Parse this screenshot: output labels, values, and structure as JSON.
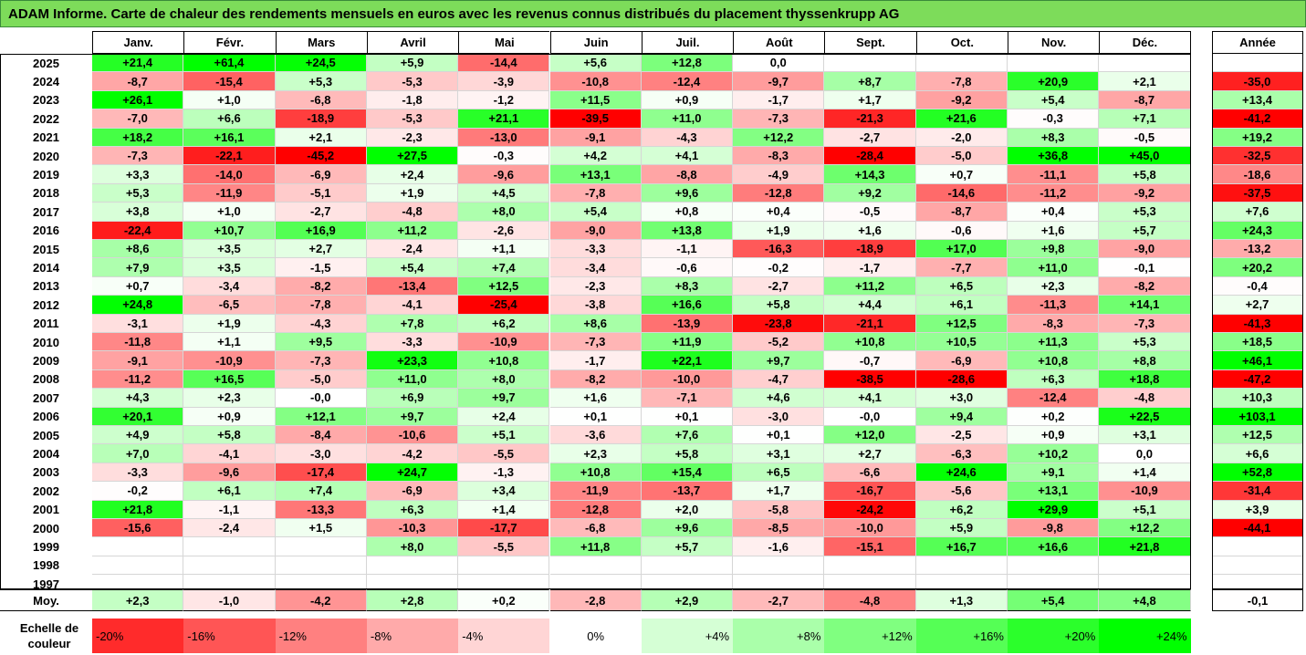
{
  "title": "ADAM Informe. Carte de chaleur des rendements mensuels en euros avec les revenus connus distribués du placement thyssenkrupp AG",
  "colors": {
    "title_bg": "#7ddc5a",
    "neg_max": "#ff0000",
    "pos_max": "#00ff00",
    "neutral": "#ffffff"
  },
  "chart_data": {
    "type": "heatmap",
    "title": "ADAM Informe. Carte de chaleur des rendements mensuels en euros avec les revenus connus distribués du placement thyssenkrupp AG",
    "months": [
      "Janv.",
      "Févr.",
      "Mars",
      "Avril",
      "Mai",
      "Juin",
      "Juil.",
      "Août",
      "Sept.",
      "Oct.",
      "Nov.",
      "Déc."
    ],
    "year_header": "Année",
    "rows": [
      {
        "year": "2025",
        "values": [
          "+21,4",
          "+61,4",
          "+24,5",
          "+5,9",
          "-14,4",
          "+5,6",
          "+12,8",
          "0,0",
          "",
          "",
          "",
          ""
        ],
        "annual": ""
      },
      {
        "year": "2024",
        "values": [
          "-8,7",
          "-15,4",
          "+5,3",
          "-5,3",
          "-3,9",
          "-10,8",
          "-12,4",
          "-9,7",
          "+8,7",
          "-7,8",
          "+20,9",
          "+2,1"
        ],
        "annual": "-35,0"
      },
      {
        "year": "2023",
        "values": [
          "+26,1",
          "+1,0",
          "-6,8",
          "-1,8",
          "-1,2",
          "+11,5",
          "+0,9",
          "-1,7",
          "+1,7",
          "-9,2",
          "+5,4",
          "-8,7"
        ],
        "annual": "+13,4"
      },
      {
        "year": "2022",
        "values": [
          "-7,0",
          "+6,6",
          "-18,9",
          "-5,3",
          "+21,1",
          "-39,5",
          "+11,0",
          "-7,3",
          "-21,3",
          "+21,6",
          "-0,3",
          "+7,1"
        ],
        "annual": "-41,2"
      },
      {
        "year": "2021",
        "values": [
          "+18,2",
          "+16,1",
          "+2,1",
          "-2,3",
          "-13,0",
          "-9,1",
          "-4,3",
          "+12,2",
          "-2,7",
          "-2,0",
          "+8,3",
          "-0,5"
        ],
        "annual": "+19,2"
      },
      {
        "year": "2020",
        "values": [
          "-7,3",
          "-22,1",
          "-45,2",
          "+27,5",
          "-0,3",
          "+4,2",
          "+4,1",
          "-8,3",
          "-28,4",
          "-5,0",
          "+36,8",
          "+45,0"
        ],
        "annual": "-32,5"
      },
      {
        "year": "2019",
        "values": [
          "+3,3",
          "-14,0",
          "-6,9",
          "+2,4",
          "-9,6",
          "+13,1",
          "-8,8",
          "-4,9",
          "+14,3",
          "+0,7",
          "-11,1",
          "+5,8"
        ],
        "annual": "-18,6"
      },
      {
        "year": "2018",
        "values": [
          "+5,3",
          "-11,9",
          "-5,1",
          "+1,9",
          "+4,5",
          "-7,8",
          "+9,6",
          "-12,8",
          "+9,2",
          "-14,6",
          "-11,2",
          "-9,2"
        ],
        "annual": "-37,5"
      },
      {
        "year": "2017",
        "values": [
          "+3,8",
          "+1,0",
          "-2,7",
          "-4,8",
          "+8,0",
          "+5,4",
          "+0,8",
          "+0,4",
          "-0,5",
          "-8,7",
          "+0,4",
          "+5,3"
        ],
        "annual": "+7,6"
      },
      {
        "year": "2016",
        "values": [
          "-22,4",
          "+10,7",
          "+16,9",
          "+11,2",
          "-2,6",
          "-9,0",
          "+13,8",
          "+1,9",
          "+1,6",
          "-0,6",
          "+1,6",
          "+5,7"
        ],
        "annual": "+24,3"
      },
      {
        "year": "2015",
        "values": [
          "+8,6",
          "+3,5",
          "+2,7",
          "-2,4",
          "+1,1",
          "-3,3",
          "-1,1",
          "-16,3",
          "-18,9",
          "+17,0",
          "+9,8",
          "-9,0"
        ],
        "annual": "-13,2"
      },
      {
        "year": "2014",
        "values": [
          "+7,9",
          "+3,5",
          "-1,5",
          "+5,4",
          "+7,4",
          "-3,4",
          "-0,6",
          "-0,2",
          "-1,7",
          "-7,7",
          "+11,0",
          "-0,1"
        ],
        "annual": "+20,2"
      },
      {
        "year": "2013",
        "values": [
          "+0,7",
          "-3,4",
          "-8,2",
          "-13,4",
          "+12,5",
          "-2,3",
          "+8,3",
          "-2,7",
          "+11,2",
          "+6,5",
          "+2,3",
          "-8,2"
        ],
        "annual": "-0,4"
      },
      {
        "year": "2012",
        "values": [
          "+24,8",
          "-6,5",
          "-7,8",
          "-4,1",
          "-25,4",
          "-3,8",
          "+16,6",
          "+5,8",
          "+4,4",
          "+6,1",
          "-11,3",
          "+14,1"
        ],
        "annual": "+2,7"
      },
      {
        "year": "2011",
        "values": [
          "-3,1",
          "+1,9",
          "-4,3",
          "+7,8",
          "+6,2",
          "+8,6",
          "-13,9",
          "-23,8",
          "-21,1",
          "+12,5",
          "-8,3",
          "-7,3"
        ],
        "annual": "-41,3"
      },
      {
        "year": "2010",
        "values": [
          "-11,8",
          "+1,1",
          "+9,5",
          "-3,3",
          "-10,9",
          "-7,3",
          "+11,9",
          "-5,2",
          "+10,8",
          "+10,5",
          "+11,3",
          "+5,3"
        ],
        "annual": "+18,5"
      },
      {
        "year": "2009",
        "values": [
          "-9,1",
          "-10,9",
          "-7,3",
          "+23,3",
          "+10,8",
          "-1,7",
          "+22,1",
          "+9,7",
          "-0,7",
          "-6,9",
          "+10,8",
          "+8,8"
        ],
        "annual": "+46,1"
      },
      {
        "year": "2008",
        "values": [
          "-11,2",
          "+16,5",
          "-5,0",
          "+11,0",
          "+8,0",
          "-8,2",
          "-10,0",
          "-4,7",
          "-38,5",
          "-28,6",
          "+6,3",
          "+18,8"
        ],
        "annual": "-47,2"
      },
      {
        "year": "2007",
        "values": [
          "+4,3",
          "+2,3",
          "-0,0",
          "+6,9",
          "+9,7",
          "+1,6",
          "-7,1",
          "+4,6",
          "+4,1",
          "+3,0",
          "-12,4",
          "-4,8"
        ],
        "annual": "+10,3"
      },
      {
        "year": "2006",
        "values": [
          "+20,1",
          "+0,9",
          "+12,1",
          "+9,7",
          "+2,4",
          "+0,1",
          "+0,1",
          "-3,0",
          "-0,0",
          "+9,4",
          "+0,2",
          "+22,5"
        ],
        "annual": "+103,1"
      },
      {
        "year": "2005",
        "values": [
          "+4,9",
          "+5,8",
          "-8,4",
          "-10,6",
          "+5,1",
          "-3,6",
          "+7,6",
          "+0,1",
          "+12,0",
          "-2,5",
          "+0,9",
          "+3,1"
        ],
        "annual": "+12,5"
      },
      {
        "year": "2004",
        "values": [
          "+7,0",
          "-4,1",
          "-3,0",
          "-4,2",
          "-5,5",
          "+2,3",
          "+5,8",
          "+3,1",
          "+2,7",
          "-6,3",
          "+10,2",
          "0,0"
        ],
        "annual": "+6,6"
      },
      {
        "year": "2003",
        "values": [
          "-3,3",
          "-9,6",
          "-17,4",
          "+24,7",
          "-1,3",
          "+10,8",
          "+15,4",
          "+6,5",
          "-6,6",
          "+24,6",
          "+9,1",
          "+1,4"
        ],
        "annual": "+52,8"
      },
      {
        "year": "2002",
        "values": [
          "-0,2",
          "+6,1",
          "+7,4",
          "-6,9",
          "+3,4",
          "-11,9",
          "-13,7",
          "+1,7",
          "-16,7",
          "-5,6",
          "+13,1",
          "-10,9"
        ],
        "annual": "-31,4"
      },
      {
        "year": "2001",
        "values": [
          "+21,8",
          "-1,1",
          "-13,3",
          "+6,3",
          "+1,4",
          "-12,8",
          "+2,0",
          "-5,8",
          "-24,2",
          "+6,2",
          "+29,9",
          "+5,1"
        ],
        "annual": "+3,9"
      },
      {
        "year": "2000",
        "values": [
          "-15,6",
          "-2,4",
          "+1,5",
          "-10,3",
          "-17,7",
          "-6,8",
          "+9,6",
          "-8,5",
          "-10,0",
          "+5,9",
          "-9,8",
          "+12,2"
        ],
        "annual": "-44,1"
      },
      {
        "year": "1999",
        "values": [
          "",
          "",
          "",
          "+8,0",
          "-5,5",
          "+11,8",
          "+5,7",
          "-1,6",
          "-15,1",
          "+16,7",
          "+16,6",
          "+21,8"
        ],
        "annual": ""
      },
      {
        "year": "1998",
        "values": [
          "",
          "",
          "",
          "",
          "",
          "",
          "",
          "",
          "",
          "",
          "",
          ""
        ],
        "annual": ""
      },
      {
        "year": "1997",
        "values": [
          "",
          "",
          "",
          "",
          "",
          "",
          "",
          "",
          "",
          "",
          "",
          ""
        ],
        "annual": ""
      }
    ],
    "average": {
      "label": "Moy.",
      "values": [
        "+2,3",
        "-1,0",
        "-4,2",
        "+2,8",
        "+0,2",
        "-2,8",
        "+2,9",
        "-2,7",
        "-4,8",
        "+1,3",
        "+5,4",
        "+4,8"
      ],
      "annual": "-0,1"
    },
    "scale": {
      "label_line1": "Echelle de",
      "label_line2": "couleur",
      "steps": [
        "-20%",
        "-16%",
        "-12%",
        "-8%",
        "-4%",
        "0%",
        "+4%",
        "+8%",
        "+12%",
        "+16%",
        "+20%",
        "+24%"
      ],
      "step_values": [
        -20,
        -16,
        -12,
        -8,
        -4,
        0,
        4,
        8,
        12,
        16,
        20,
        24
      ]
    }
  }
}
